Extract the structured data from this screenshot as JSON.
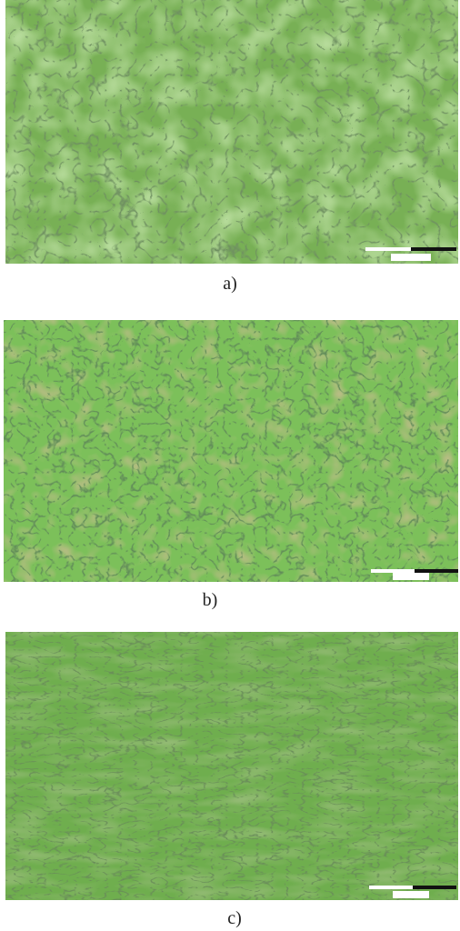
{
  "figure": {
    "panels": [
      {
        "label": "a)"
      },
      {
        "label": "b)"
      },
      {
        "label": "c)"
      }
    ]
  }
}
